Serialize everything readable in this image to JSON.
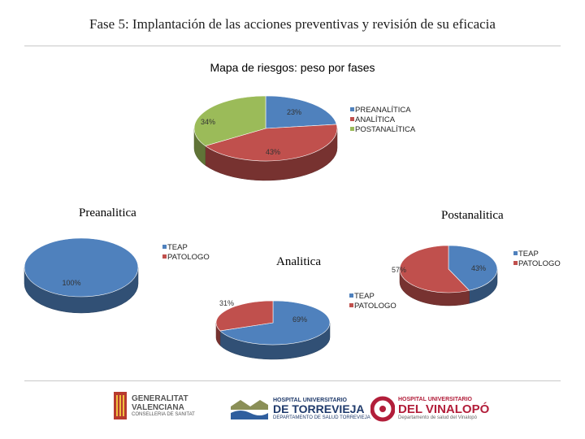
{
  "slide_title": "Fase 5: Implantación de las acciones preventivas y revisión de su eficacia",
  "colors": {
    "blue": "#4f81bd",
    "red": "#c0504d",
    "green": "#9bbb59"
  },
  "chart_data": [
    {
      "type": "pie",
      "title": "Mapa de riesgos: peso por fases",
      "categories": [
        "PREANALÍTICA",
        "ANALÍTICA",
        "POSTANALÍTICA"
      ],
      "values": [
        23,
        43,
        34
      ],
      "labels": [
        "23%",
        "43%",
        "34%"
      ]
    },
    {
      "type": "pie",
      "title": "Preanalitica",
      "categories": [
        "TEAP",
        "PATOLOGO"
      ],
      "values": [
        100,
        0
      ],
      "labels": [
        "100%"
      ]
    },
    {
      "type": "pie",
      "title": "Analitica",
      "categories": [
        "TEAP",
        "PATOLOGO"
      ],
      "values": [
        69,
        31
      ],
      "labels": [
        "69%",
        "31%"
      ]
    },
    {
      "type": "pie",
      "title": "Postanalitica",
      "categories": [
        "TEAP",
        "PATOLOGO"
      ],
      "values": [
        43,
        57
      ],
      "labels": [
        "43%",
        "57%"
      ]
    }
  ],
  "logos": {
    "generalitat": [
      "GENERALITAT",
      "VALENCIANA",
      "CONSELLERIA DE SANITAT"
    ],
    "torrevieja": [
      "HOSPITAL UNIVERSITARIO",
      "DE TORREVIEJA",
      "DEPARTAMENTO DE SALUD TORREVIEJA"
    ],
    "vinalopo": [
      "HOSPITAL UNIVERSITARIO",
      "DEL VINALOPÓ",
      "Departamento de salud del Vinalopó"
    ]
  }
}
